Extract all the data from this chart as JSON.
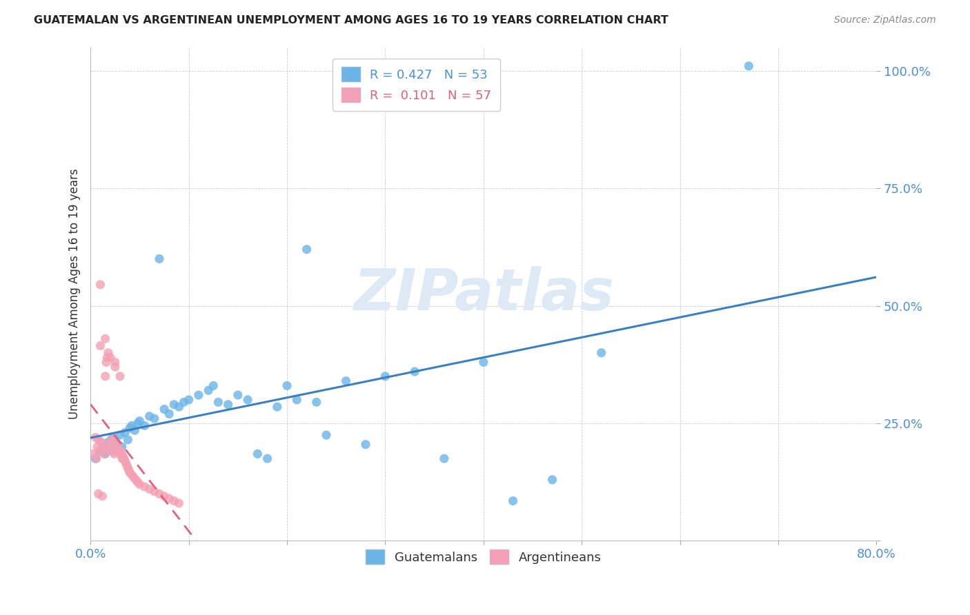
{
  "title": "GUATEMALAN VS ARGENTINEAN UNEMPLOYMENT AMONG AGES 16 TO 19 YEARS CORRELATION CHART",
  "source": "Source: ZipAtlas.com",
  "ylabel": "Unemployment Among Ages 16 to 19 years",
  "xlim": [
    0.0,
    0.8
  ],
  "ylim": [
    0.0,
    1.05
  ],
  "guatemalan_R": 0.427,
  "guatemalan_N": 53,
  "argentinean_R": 0.101,
  "argentinean_N": 57,
  "blue_color": "#6ab4e8",
  "pink_color": "#f4a0b5",
  "blue_line_color": "#3a80c0",
  "pink_line_color": "#e06080",
  "watermark": "ZIPatlas",
  "guatemalan_x": [
    0.005,
    0.01,
    0.012,
    0.015,
    0.018,
    0.02,
    0.022,
    0.025,
    0.028,
    0.03,
    0.032,
    0.035,
    0.038,
    0.04,
    0.042,
    0.045,
    0.048,
    0.05,
    0.055,
    0.06,
    0.065,
    0.07,
    0.075,
    0.08,
    0.085,
    0.09,
    0.095,
    0.1,
    0.11,
    0.12,
    0.125,
    0.13,
    0.14,
    0.15,
    0.16,
    0.17,
    0.18,
    0.19,
    0.2,
    0.21,
    0.22,
    0.23,
    0.24,
    0.26,
    0.28,
    0.3,
    0.33,
    0.36,
    0.4,
    0.43,
    0.47,
    0.52,
    0.67
  ],
  "guatemalan_y": [
    0.175,
    0.19,
    0.2,
    0.185,
    0.21,
    0.195,
    0.22,
    0.215,
    0.205,
    0.225,
    0.2,
    0.23,
    0.215,
    0.24,
    0.245,
    0.235,
    0.25,
    0.255,
    0.245,
    0.265,
    0.26,
    0.6,
    0.28,
    0.27,
    0.29,
    0.285,
    0.295,
    0.3,
    0.31,
    0.32,
    0.33,
    0.295,
    0.29,
    0.31,
    0.3,
    0.185,
    0.175,
    0.285,
    0.33,
    0.3,
    0.62,
    0.295,
    0.225,
    0.34,
    0.205,
    0.35,
    0.36,
    0.175,
    0.38,
    0.085,
    0.13,
    0.4,
    1.01
  ],
  "argentinean_x": [
    0.003,
    0.005,
    0.006,
    0.007,
    0.008,
    0.009,
    0.01,
    0.011,
    0.012,
    0.013,
    0.014,
    0.015,
    0.016,
    0.017,
    0.018,
    0.019,
    0.02,
    0.021,
    0.022,
    0.023,
    0.024,
    0.025,
    0.026,
    0.027,
    0.028,
    0.029,
    0.03,
    0.031,
    0.032,
    0.033,
    0.034,
    0.035,
    0.036,
    0.037,
    0.038,
    0.039,
    0.04,
    0.042,
    0.044,
    0.046,
    0.048,
    0.05,
    0.055,
    0.06,
    0.065,
    0.07,
    0.075,
    0.08,
    0.085,
    0.09,
    0.01,
    0.015,
    0.02,
    0.025,
    0.03,
    0.008,
    0.012
  ],
  "argentinean_y": [
    0.185,
    0.22,
    0.175,
    0.2,
    0.215,
    0.19,
    0.545,
    0.21,
    0.195,
    0.2,
    0.185,
    0.35,
    0.38,
    0.39,
    0.4,
    0.195,
    0.205,
    0.21,
    0.215,
    0.19,
    0.185,
    0.38,
    0.195,
    0.205,
    0.2,
    0.195,
    0.185,
    0.19,
    0.175,
    0.18,
    0.175,
    0.17,
    0.165,
    0.16,
    0.155,
    0.15,
    0.145,
    0.14,
    0.135,
    0.13,
    0.125,
    0.12,
    0.115,
    0.11,
    0.105,
    0.1,
    0.095,
    0.09,
    0.085,
    0.08,
    0.415,
    0.43,
    0.39,
    0.37,
    0.35,
    0.1,
    0.095
  ]
}
